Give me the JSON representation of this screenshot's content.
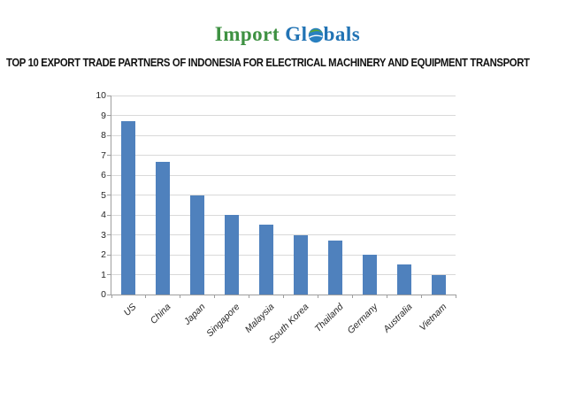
{
  "logo": {
    "part1": "Import",
    "part2": "Gl",
    "part3": "bals",
    "green": "#3e9142",
    "blue": "#2173b4",
    "globe_blue": "#2980c0",
    "globe_green": "#58a832"
  },
  "headline": "TOP 10 EXPORT TRADE PARTNERS OF INDONESIA FOR ELECTRICAL MACHINERY AND EQUIPMENT TRANSPORT",
  "chart_data": {
    "type": "bar",
    "categories": [
      "US",
      "China",
      "Japan",
      "Singapore",
      "Malaysia",
      "South Korea",
      "Thailand",
      "Germany",
      "Australia",
      "Vietnam"
    ],
    "values": [
      8.7,
      6.65,
      5,
      4,
      3.5,
      3,
      2.7,
      2,
      1.5,
      1
    ],
    "title": "",
    "xlabel": "",
    "ylabel": "",
    "ylim": [
      0,
      10
    ],
    "ytick_step": 1,
    "grid": true,
    "legend": false,
    "bar_color": "#4f81bd",
    "gridline_color": "#d9d9d9",
    "axis_color": "#9e9e9e",
    "label_color": "#262626"
  }
}
